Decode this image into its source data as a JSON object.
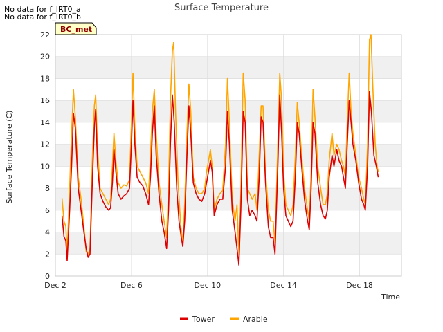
{
  "notes": [
    "No data for f_IRT0_a",
    "No data for f_IRT0_b"
  ],
  "badge": "BC_met",
  "colors": {
    "tower": "#dd0000",
    "arable": "#ffa500",
    "band": "#f0f0f0",
    "grid": "#dddddd",
    "badge_bg": "#ffffc8"
  },
  "chart_data": {
    "type": "line",
    "title": "Surface Temperature",
    "xlabel": "Time",
    "ylabel": "Surface Temperature (C)",
    "x_unit": "days (Dec)",
    "xlim": [
      2,
      20.2
    ],
    "ylim": [
      0,
      22
    ],
    "yticks": [
      0,
      2,
      4,
      6,
      8,
      10,
      12,
      14,
      16,
      18,
      20,
      22
    ],
    "xticks": [
      {
        "value": 2,
        "label": "Dec 2"
      },
      {
        "value": 6,
        "label": "Dec 6"
      },
      {
        "value": 10,
        "label": "Dec 10"
      },
      {
        "value": 14,
        "label": "Dec 14"
      },
      {
        "value": 18,
        "label": "Dec 18"
      }
    ],
    "legend_position": "bottom-center",
    "series": [
      {
        "name": "Tower",
        "color": "#dd0000",
        "points": [
          [
            2.35,
            5.5
          ],
          [
            2.45,
            3.6
          ],
          [
            2.55,
            3.2
          ],
          [
            2.62,
            1.4
          ],
          [
            2.75,
            6.0
          ],
          [
            2.85,
            10.0
          ],
          [
            2.95,
            14.8
          ],
          [
            3.05,
            13.5
          ],
          [
            3.2,
            8.0
          ],
          [
            3.35,
            6.0
          ],
          [
            3.5,
            4.0
          ],
          [
            3.62,
            2.5
          ],
          [
            3.72,
            1.7
          ],
          [
            3.82,
            2.0
          ],
          [
            3.95,
            9.0
          ],
          [
            4.05,
            13.5
          ],
          [
            4.12,
            15.2
          ],
          [
            4.22,
            10.0
          ],
          [
            4.35,
            7.5
          ],
          [
            4.5,
            6.8
          ],
          [
            4.65,
            6.3
          ],
          [
            4.8,
            6.0
          ],
          [
            4.9,
            6.2
          ],
          [
            5.0,
            8.5
          ],
          [
            5.08,
            11.5
          ],
          [
            5.18,
            9.5
          ],
          [
            5.3,
            7.5
          ],
          [
            5.45,
            7.0
          ],
          [
            5.6,
            7.3
          ],
          [
            5.75,
            7.5
          ],
          [
            5.9,
            8.0
          ],
          [
            6.0,
            12.0
          ],
          [
            6.08,
            16.0
          ],
          [
            6.18,
            12.0
          ],
          [
            6.3,
            9.0
          ],
          [
            6.45,
            8.5
          ],
          [
            6.6,
            8.2
          ],
          [
            6.75,
            7.5
          ],
          [
            6.9,
            6.5
          ],
          [
            7.0,
            9.0
          ],
          [
            7.1,
            13.0
          ],
          [
            7.2,
            15.5
          ],
          [
            7.3,
            11.0
          ],
          [
            7.45,
            7.5
          ],
          [
            7.6,
            5.0
          ],
          [
            7.72,
            4.0
          ],
          [
            7.85,
            2.5
          ],
          [
            7.95,
            6.0
          ],
          [
            8.05,
            12.0
          ],
          [
            8.15,
            16.5
          ],
          [
            8.25,
            14.0
          ],
          [
            8.38,
            8.0
          ],
          [
            8.5,
            5.0
          ],
          [
            8.62,
            3.5
          ],
          [
            8.7,
            2.7
          ],
          [
            8.8,
            5.0
          ],
          [
            8.92,
            11.0
          ],
          [
            9.02,
            15.5
          ],
          [
            9.12,
            13.0
          ],
          [
            9.25,
            8.5
          ],
          [
            9.4,
            7.5
          ],
          [
            9.55,
            7.0
          ],
          [
            9.7,
            6.8
          ],
          [
            9.85,
            7.5
          ],
          [
            9.95,
            8.5
          ],
          [
            10.05,
            9.5
          ],
          [
            10.15,
            10.5
          ],
          [
            10.25,
            9.5
          ],
          [
            10.35,
            5.5
          ],
          [
            10.5,
            6.5
          ],
          [
            10.65,
            7.0
          ],
          [
            10.8,
            7.0
          ],
          [
            10.95,
            10.0
          ],
          [
            11.05,
            15.0
          ],
          [
            11.15,
            12.0
          ],
          [
            11.3,
            6.0
          ],
          [
            11.45,
            4.0
          ],
          [
            11.55,
            2.5
          ],
          [
            11.65,
            1.0
          ],
          [
            11.75,
            6.0
          ],
          [
            11.88,
            15.0
          ],
          [
            11.98,
            14.0
          ],
          [
            12.1,
            7.0
          ],
          [
            12.22,
            5.5
          ],
          [
            12.35,
            6.0
          ],
          [
            12.5,
            5.5
          ],
          [
            12.6,
            5.0
          ],
          [
            12.72,
            9.0
          ],
          [
            12.82,
            14.5
          ],
          [
            12.92,
            14.0
          ],
          [
            13.05,
            8.5
          ],
          [
            13.2,
            4.5
          ],
          [
            13.32,
            3.5
          ],
          [
            13.45,
            3.5
          ],
          [
            13.55,
            2.0
          ],
          [
            13.7,
            10.0
          ],
          [
            13.8,
            16.5
          ],
          [
            13.9,
            13.0
          ],
          [
            14.0,
            8.0
          ],
          [
            14.12,
            5.5
          ],
          [
            14.25,
            5.0
          ],
          [
            14.38,
            4.5
          ],
          [
            14.5,
            5.0
          ],
          [
            14.62,
            9.0
          ],
          [
            14.72,
            14.0
          ],
          [
            14.82,
            13.0
          ],
          [
            14.95,
            10.0
          ],
          [
            15.1,
            7.0
          ],
          [
            15.22,
            5.5
          ],
          [
            15.35,
            4.2
          ],
          [
            15.45,
            8.0
          ],
          [
            15.55,
            14.0
          ],
          [
            15.65,
            13.0
          ],
          [
            15.8,
            8.5
          ],
          [
            15.95,
            6.5
          ],
          [
            16.08,
            5.5
          ],
          [
            16.2,
            5.2
          ],
          [
            16.3,
            6.0
          ],
          [
            16.4,
            9.0
          ],
          [
            16.55,
            11.0
          ],
          [
            16.65,
            10.0
          ],
          [
            16.8,
            11.5
          ],
          [
            16.92,
            10.5
          ],
          [
            17.05,
            10.0
          ],
          [
            17.15,
            9.0
          ],
          [
            17.25,
            8.0
          ],
          [
            17.35,
            12.0
          ],
          [
            17.45,
            16.0
          ],
          [
            17.55,
            14.0
          ],
          [
            17.65,
            12.0
          ],
          [
            17.8,
            10.5
          ],
          [
            17.95,
            8.5
          ],
          [
            18.1,
            7.0
          ],
          [
            18.22,
            6.5
          ],
          [
            18.3,
            6.0
          ],
          [
            18.42,
            10.0
          ],
          [
            18.52,
            16.8
          ],
          [
            18.62,
            15.0
          ],
          [
            18.75,
            11.0
          ],
          [
            18.88,
            10.0
          ],
          [
            18.98,
            9.0
          ]
        ]
      },
      {
        "name": "Arable",
        "color": "#ffa500",
        "points": [
          [
            2.35,
            7.1
          ],
          [
            2.45,
            5.0
          ],
          [
            2.55,
            4.5
          ],
          [
            2.62,
            2.0
          ],
          [
            2.75,
            8.0
          ],
          [
            2.85,
            13.0
          ],
          [
            2.95,
            17.0
          ],
          [
            3.05,
            14.5
          ],
          [
            3.2,
            9.0
          ],
          [
            3.35,
            7.0
          ],
          [
            3.5,
            4.5
          ],
          [
            3.62,
            2.2
          ],
          [
            3.72,
            2.0
          ],
          [
            3.82,
            2.5
          ],
          [
            3.95,
            11.0
          ],
          [
            4.05,
            15.5
          ],
          [
            4.12,
            16.5
          ],
          [
            4.22,
            11.5
          ],
          [
            4.35,
            8.0
          ],
          [
            4.5,
            7.5
          ],
          [
            4.65,
            7.0
          ],
          [
            4.8,
            6.5
          ],
          [
            4.9,
            7.0
          ],
          [
            5.0,
            10.0
          ],
          [
            5.08,
            13.0
          ],
          [
            5.18,
            10.5
          ],
          [
            5.3,
            8.5
          ],
          [
            5.45,
            8.0
          ],
          [
            5.6,
            8.3
          ],
          [
            5.75,
            8.2
          ],
          [
            5.9,
            8.8
          ],
          [
            6.0,
            14.0
          ],
          [
            6.08,
            18.5
          ],
          [
            6.18,
            13.5
          ],
          [
            6.3,
            10.0
          ],
          [
            6.45,
            9.5
          ],
          [
            6.6,
            9.0
          ],
          [
            6.75,
            8.5
          ],
          [
            6.9,
            7.5
          ],
          [
            7.0,
            11.0
          ],
          [
            7.1,
            15.0
          ],
          [
            7.2,
            17.0
          ],
          [
            7.3,
            13.0
          ],
          [
            7.45,
            8.5
          ],
          [
            7.6,
            6.5
          ],
          [
            7.72,
            5.0
          ],
          [
            7.85,
            3.5
          ],
          [
            7.95,
            8.0
          ],
          [
            8.05,
            16.0
          ],
          [
            8.15,
            20.5
          ],
          [
            8.22,
            21.3
          ],
          [
            8.32,
            15.0
          ],
          [
            8.45,
            8.5
          ],
          [
            8.6,
            4.5
          ],
          [
            8.7,
            3.0
          ],
          [
            8.8,
            6.5
          ],
          [
            8.92,
            13.0
          ],
          [
            9.02,
            17.5
          ],
          [
            9.12,
            15.0
          ],
          [
            9.25,
            9.0
          ],
          [
            9.4,
            8.0
          ],
          [
            9.55,
            7.5
          ],
          [
            9.7,
            7.5
          ],
          [
            9.85,
            8.0
          ],
          [
            9.95,
            9.5
          ],
          [
            10.05,
            10.5
          ],
          [
            10.15,
            11.5
          ],
          [
            10.25,
            10.0
          ],
          [
            10.35,
            6.0
          ],
          [
            10.5,
            7.0
          ],
          [
            10.65,
            7.5
          ],
          [
            10.8,
            7.8
          ],
          [
            10.95,
            12.0
          ],
          [
            11.05,
            18.0
          ],
          [
            11.15,
            14.0
          ],
          [
            11.3,
            7.0
          ],
          [
            11.45,
            5.0
          ],
          [
            11.55,
            6.5
          ],
          [
            11.65,
            2.0
          ],
          [
            11.75,
            7.5
          ],
          [
            11.88,
            18.5
          ],
          [
            11.98,
            16.0
          ],
          [
            12.1,
            8.0
          ],
          [
            12.22,
            7.5
          ],
          [
            12.35,
            7.0
          ],
          [
            12.5,
            7.5
          ],
          [
            12.6,
            6.0
          ],
          [
            12.72,
            11.0
          ],
          [
            12.82,
            15.5
          ],
          [
            12.92,
            15.5
          ],
          [
            13.05,
            9.5
          ],
          [
            13.2,
            6.0
          ],
          [
            13.32,
            5.0
          ],
          [
            13.45,
            5.0
          ],
          [
            13.55,
            3.0
          ],
          [
            13.7,
            12.0
          ],
          [
            13.8,
            18.5
          ],
          [
            13.9,
            16.0
          ],
          [
            14.0,
            9.5
          ],
          [
            14.12,
            6.5
          ],
          [
            14.25,
            6.0
          ],
          [
            14.38,
            5.5
          ],
          [
            14.5,
            6.5
          ],
          [
            14.62,
            11.0
          ],
          [
            14.72,
            15.8
          ],
          [
            14.82,
            14.0
          ],
          [
            14.95,
            11.0
          ],
          [
            15.1,
            8.0
          ],
          [
            15.22,
            6.5
          ],
          [
            15.35,
            5.0
          ],
          [
            15.45,
            9.5
          ],
          [
            15.55,
            17.0
          ],
          [
            15.65,
            14.5
          ],
          [
            15.8,
            10.0
          ],
          [
            15.95,
            8.0
          ],
          [
            16.08,
            6.5
          ],
          [
            16.2,
            6.5
          ],
          [
            16.3,
            7.5
          ],
          [
            16.4,
            10.5
          ],
          [
            16.55,
            13.0
          ],
          [
            16.65,
            11.0
          ],
          [
            16.8,
            12.0
          ],
          [
            16.92,
            11.5
          ],
          [
            17.05,
            10.5
          ],
          [
            17.15,
            10.0
          ],
          [
            17.25,
            9.0
          ],
          [
            17.35,
            14.0
          ],
          [
            17.45,
            18.5
          ],
          [
            17.55,
            15.0
          ],
          [
            17.65,
            13.0
          ],
          [
            17.8,
            11.0
          ],
          [
            17.95,
            9.0
          ],
          [
            18.1,
            8.0
          ],
          [
            18.22,
            7.0
          ],
          [
            18.3,
            6.5
          ],
          [
            18.42,
            12.0
          ],
          [
            18.52,
            21.5
          ],
          [
            18.6,
            22.0
          ],
          [
            18.7,
            17.0
          ],
          [
            18.82,
            12.0
          ],
          [
            18.92,
            10.0
          ],
          [
            18.98,
            9.5
          ]
        ]
      }
    ]
  }
}
